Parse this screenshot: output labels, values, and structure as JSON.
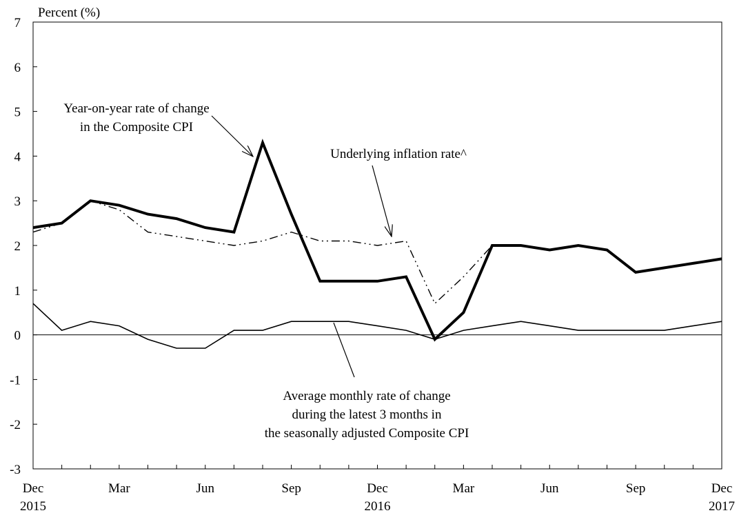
{
  "chart_data": {
    "type": "line",
    "title": "",
    "ylabel": "Percent (%)",
    "xlabel": "",
    "ylim": [
      -3,
      7
    ],
    "yticks": [
      -3,
      -2,
      -1,
      0,
      1,
      2,
      3,
      4,
      5,
      6,
      7
    ],
    "grid": false,
    "x": [
      "Dec 2015",
      "Jan 2016",
      "Feb 2016",
      "Mar 2016",
      "Apr 2016",
      "May 2016",
      "Jun 2016",
      "Jul 2016",
      "Aug 2016",
      "Sep 2016",
      "Oct 2016",
      "Nov 2016",
      "Dec 2016",
      "Jan 2017",
      "Feb 2017",
      "Mar 2017",
      "Apr 2017",
      "May 2017",
      "Jun 2017",
      "Jul 2017",
      "Aug 2017",
      "Sep 2017",
      "Oct 2017",
      "Nov 2017",
      "Dec 2017"
    ],
    "xtick_labels": [
      {
        "month": "Dec",
        "year": "2015"
      },
      {
        "month": "Mar",
        "year": ""
      },
      {
        "month": "Jun",
        "year": ""
      },
      {
        "month": "Sep",
        "year": ""
      },
      {
        "month": "Dec",
        "year": "2016"
      },
      {
        "month": "Mar",
        "year": ""
      },
      {
        "month": "Jun",
        "year": ""
      },
      {
        "month": "Sep",
        "year": ""
      },
      {
        "month": "Dec",
        "year": "2017"
      }
    ],
    "series": [
      {
        "key": "composite_yoy",
        "style": "thick-solid",
        "values": [
          2.4,
          2.5,
          3.0,
          2.9,
          2.7,
          2.6,
          2.4,
          2.3,
          4.3,
          2.7,
          1.2,
          1.2,
          1.2,
          1.3,
          -0.1,
          0.5,
          2.0,
          2.0,
          1.9,
          2.0,
          1.9,
          1.4,
          1.5,
          1.6,
          1.7
        ]
      },
      {
        "key": "underlying",
        "style": "dash-dot-dot",
        "values": [
          2.3,
          2.5,
          3.0,
          2.8,
          2.3,
          2.2,
          2.1,
          2.0,
          2.1,
          2.3,
          2.1,
          2.1,
          2.0,
          2.1,
          0.7,
          1.3,
          2.0,
          2.0,
          1.9,
          2.0,
          1.9,
          1.4,
          1.5,
          1.6,
          1.7
        ]
      },
      {
        "key": "avg_monthly_sa",
        "style": "thin-solid",
        "values": [
          0.7,
          0.1,
          0.3,
          0.2,
          -0.1,
          -0.3,
          -0.3,
          0.1,
          0.1,
          0.3,
          0.3,
          0.3,
          0.2,
          0.1,
          -0.1,
          0.1,
          0.2,
          0.3,
          0.2,
          0.1,
          0.1,
          0.1,
          0.1,
          0.2,
          0.3
        ]
      }
    ],
    "annotations": [
      {
        "lines": [
          "Year-on-year rate of change",
          "in the Composite CPI"
        ]
      },
      {
        "lines": [
          "Underlying inflation rate^"
        ]
      },
      {
        "lines": [
          "Average monthly rate of change",
          "during the latest 3 months in",
          "the seasonally adjusted Composite CPI"
        ]
      }
    ]
  }
}
